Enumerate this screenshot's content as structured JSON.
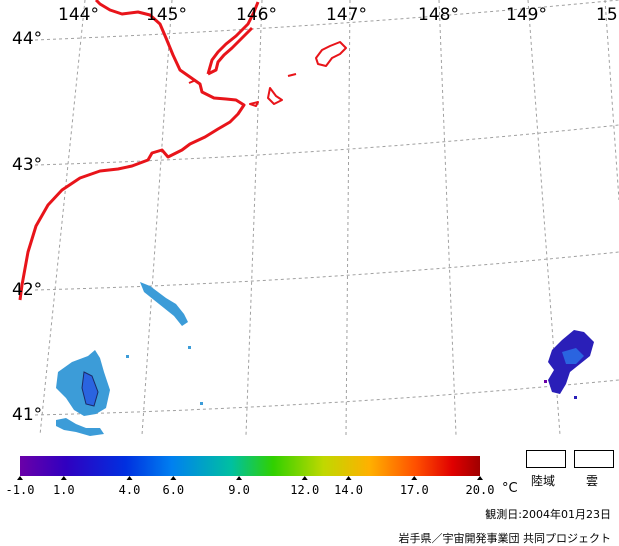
{
  "map": {
    "longitude_labels": [
      "144°",
      "145°",
      "146°",
      "147°",
      "148°",
      "149°",
      "15"
    ],
    "latitude_labels": [
      "44°",
      "43°",
      "42°",
      "41°"
    ],
    "colors": {
      "coastline": "#e8141a",
      "grid": "#a0a0a0",
      "sst_cold_dark": "#2a1fb8",
      "sst_blue": "#2a64e0",
      "sst_light": "#3c9cd8"
    }
  },
  "colorbar": {
    "tick_labels": [
      "-1.0",
      "1.0",
      "4.0",
      "6.0",
      "9.0",
      "12.0",
      "14.0",
      "17.0",
      "20.0"
    ],
    "tick_values": [
      -1.0,
      1.0,
      4.0,
      6.0,
      9.0,
      12.0,
      14.0,
      17.0,
      20.0
    ],
    "min": -1.0,
    "max": 20.0,
    "unit": "°C",
    "gradient_colors": [
      "#6a00a8",
      "#3000c0",
      "#0030e0",
      "#0080f0",
      "#00c0a0",
      "#30d000",
      "#c0d800",
      "#ffb000",
      "#ff5000",
      "#e00000",
      "#a00000"
    ]
  },
  "legend": {
    "land_label": "陸域",
    "cloud_label": "雲"
  },
  "observation_date": "観測日:2004年01月23日",
  "credit": "岩手県／宇宙開発事業団 共同プロジェクト"
}
